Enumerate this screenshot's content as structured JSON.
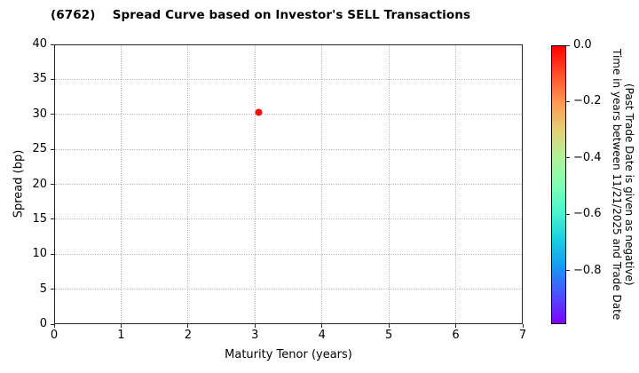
{
  "chart_data": {
    "type": "scatter",
    "title": "(6762)    Spread Curve based on Investor's SELL Transactions",
    "xlabel": "Maturity Tenor (years)",
    "ylabel": "Spread (bp)",
    "xlim": [
      0,
      7
    ],
    "ylim": [
      0,
      40
    ],
    "xticks": [
      0,
      1,
      2,
      3,
      4,
      5,
      6,
      7
    ],
    "yticks": [
      0,
      5,
      10,
      15,
      20,
      25,
      30,
      35,
      40
    ],
    "grid": true,
    "grid_style": "dotted",
    "legend": false,
    "points": [
      {
        "x": 3.05,
        "y": 30.3,
        "time_value": 0.0,
        "color": "#fe0d00"
      }
    ],
    "colorbar": {
      "colormap": "rainbow",
      "vmax": 0.0,
      "vmin": -0.99,
      "tick_values": [
        0.0,
        -0.2,
        -0.4,
        -0.6,
        -0.8
      ],
      "tick_labels": [
        "0.0",
        "−0.2",
        "−0.4",
        "−0.6",
        "−0.8"
      ],
      "label_line1": "Time in years between 11/21/2025 and Trade Date",
      "label_line2": "(Past Trade Date is given as negative)",
      "gradient_stops": [
        "#ff0000",
        "#ff4f28",
        "#ff9650",
        "#e6ce74",
        "#b2f296",
        "#80ffb4",
        "#4cf2ce",
        "#19cee3",
        "#1996f2",
        "#4c4ffc",
        "#8000ff"
      ]
    },
    "styles": {
      "grid_color": "#b9b9b9",
      "spine_color": "#262626",
      "text_color": "#000000",
      "background": "#ffffff"
    }
  }
}
